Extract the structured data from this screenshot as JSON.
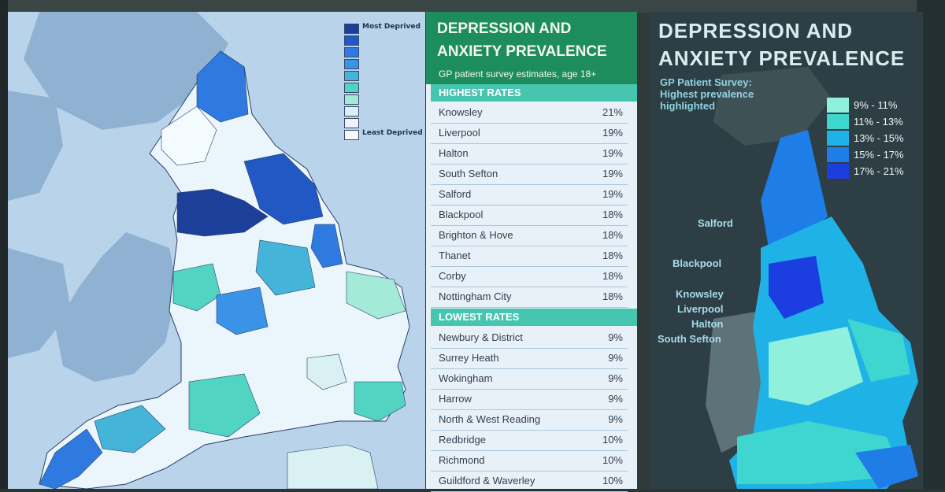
{
  "left_map": {
    "legend": [
      {
        "label": "Most Deprived",
        "color": "#1c3f9a"
      },
      {
        "label": "",
        "color": "#2158c4"
      },
      {
        "label": "",
        "color": "#2f7ae0"
      },
      {
        "label": "",
        "color": "#3a93e6"
      },
      {
        "label": "",
        "color": "#44b5d9"
      },
      {
        "label": "",
        "color": "#52d4c2"
      },
      {
        "label": "",
        "color": "#a3ead8"
      },
      {
        "label": "",
        "color": "#d9f1f3"
      },
      {
        "label": "",
        "color": "#eaf6fb"
      },
      {
        "label": "Least Deprived",
        "color": "#f4fbff"
      }
    ]
  },
  "table": {
    "title_line1": "DEPRESSION AND",
    "title_line2": "ANXIETY PREVALENCE",
    "subtitle": "GP patient survey estimates, age 18+",
    "highest_header": "HIGHEST RATES",
    "highest": [
      {
        "name": "Knowsley",
        "value": "21%"
      },
      {
        "name": "Liverpool",
        "value": "19%"
      },
      {
        "name": "Halton",
        "value": "19%"
      },
      {
        "name": "South Sefton",
        "value": "19%"
      },
      {
        "name": "Salford",
        "value": "19%"
      },
      {
        "name": "Blackpool",
        "value": "18%"
      },
      {
        "name": "Brighton & Hove",
        "value": "18%"
      },
      {
        "name": "Thanet",
        "value": "18%"
      },
      {
        "name": "Corby",
        "value": "18%"
      },
      {
        "name": "Nottingham City",
        "value": "18%"
      }
    ],
    "lowest_header": "LOWEST RATES",
    "lowest": [
      {
        "name": "Newbury & District",
        "value": "9%"
      },
      {
        "name": "Surrey Heath",
        "value": "9%"
      },
      {
        "name": "Wokingham",
        "value": "9%"
      },
      {
        "name": "Harrow",
        "value": "9%"
      },
      {
        "name": "North & West Reading",
        "value": "9%"
      },
      {
        "name": "Redbridge",
        "value": "10%"
      },
      {
        "name": "Richmond",
        "value": "10%"
      },
      {
        "name": "Guildford & Waverley",
        "value": "10%"
      }
    ]
  },
  "right_map": {
    "title_line1": "DEPRESSION AND",
    "title_line2": "ANXIETY PREVALENCE",
    "subtitle": "GP Patient Survey: Highest prevalence highlighted",
    "legend": [
      {
        "label": "9% - 11%",
        "color": "#8ff0de"
      },
      {
        "label": "11% - 13%",
        "color": "#3fd6cf"
      },
      {
        "label": "13% - 15%",
        "color": "#1fb2e6"
      },
      {
        "label": "15% - 17%",
        "color": "#1f7de8"
      },
      {
        "label": "17% - 21%",
        "color": "#1c3ee0"
      }
    ],
    "places": [
      "Salford",
      "Blackpool",
      "Knowsley",
      "Liverpool",
      "Halton",
      "South Sefton"
    ]
  }
}
